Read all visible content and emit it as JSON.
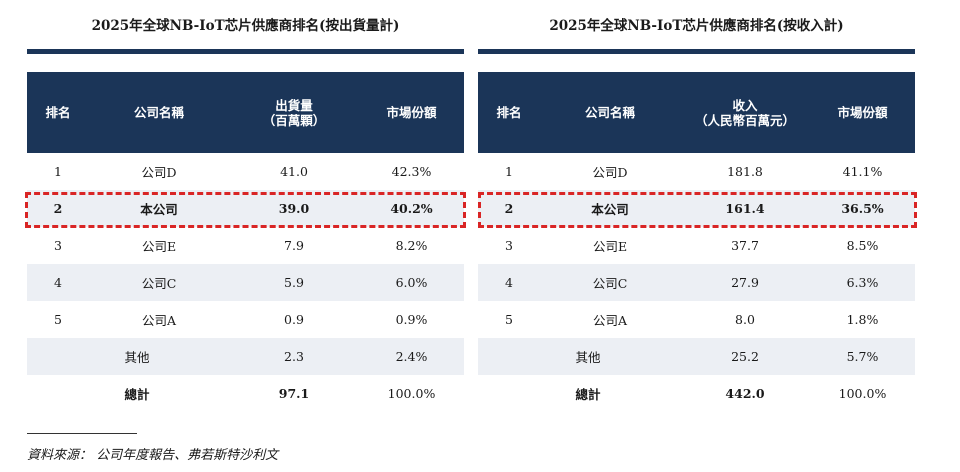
{
  "left_table": {
    "title": "2025年全球NB-IoT芯片供應商排名(按出貨量計)",
    "headers": {
      "rank": "排名",
      "name": "公司名稱",
      "value": "出貨量\n（百萬顆）",
      "share": "市場份額"
    },
    "rows": [
      {
        "rank": "1",
        "name": "公司D",
        "value": "41.0",
        "share": "42.3%"
      },
      {
        "rank": "2",
        "name": "本公司",
        "value": "39.0",
        "share": "40.2%"
      },
      {
        "rank": "3",
        "name": "公司E",
        "value": "7.9",
        "share": "8.2%"
      },
      {
        "rank": "4",
        "name": "公司C",
        "value": "5.9",
        "share": "6.0%"
      },
      {
        "rank": "5",
        "name": "公司A",
        "value": "0.9",
        "share": "0.9%"
      },
      {
        "rank": "",
        "name": "其他",
        "value": "2.3",
        "share": "2.4%"
      },
      {
        "rank": "",
        "name": "總計",
        "value": "97.1",
        "share": "100.0%"
      }
    ]
  },
  "right_table": {
    "title": "2025年全球NB-IoT芯片供應商排名(按收入計)",
    "headers": {
      "rank": "排名",
      "name": "公司名稱",
      "value": "收入\n（人民幣百萬元）",
      "share": "市場份額"
    },
    "rows": [
      {
        "rank": "1",
        "name": "公司D",
        "value": "181.8",
        "share": "41.1%"
      },
      {
        "rank": "2",
        "name": "本公司",
        "value": "161.4",
        "share": "36.5%"
      },
      {
        "rank": "3",
        "name": "公司E",
        "value": "37.7",
        "share": "8.5%"
      },
      {
        "rank": "4",
        "name": "公司C",
        "value": "27.9",
        "share": "6.3%"
      },
      {
        "rank": "5",
        "name": "公司A",
        "value": "8.0",
        "share": "1.8%"
      },
      {
        "rank": "",
        "name": "其他",
        "value": "25.2",
        "share": "5.7%"
      },
      {
        "rank": "",
        "name": "總計",
        "value": "442.0",
        "share": "100.0%"
      }
    ]
  },
  "source": "資料來源： 公司年度報告、弗若斯特沙利文",
  "colors": {
    "header_bg": "#1b3558",
    "highlight": "#d92525",
    "row_shade": "#eceff4"
  }
}
